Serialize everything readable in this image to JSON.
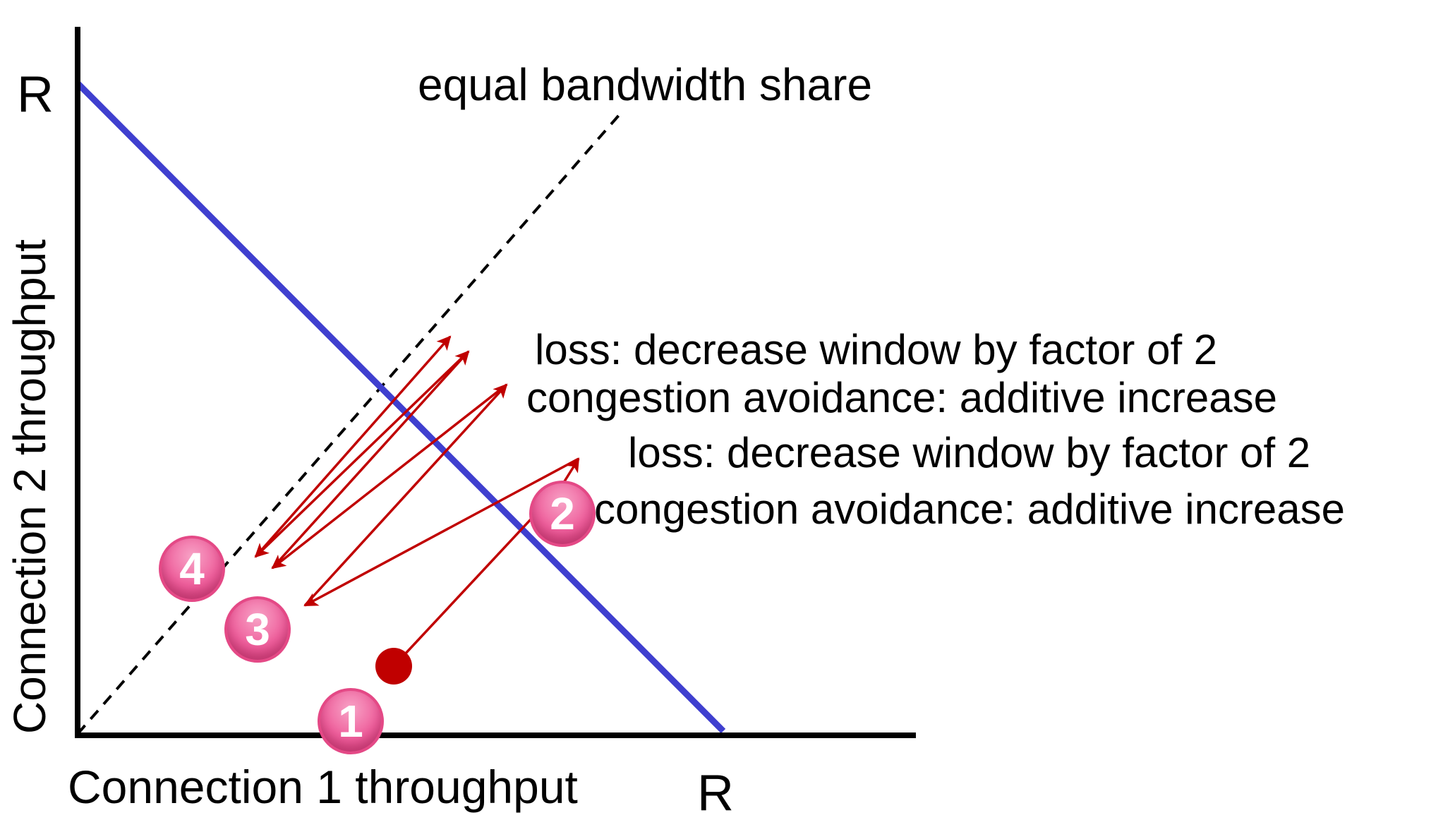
{
  "axes": {
    "x_label": "Connection 1 throughput",
    "y_label": "Connection 2 throughput",
    "x_max_label": "R",
    "y_max_label": "R"
  },
  "lines": {
    "equal_share_label": "equal bandwidth share",
    "capacity_line_color": "#3f3fcf",
    "equal_share_line_color": "#000000"
  },
  "annotations": {
    "loss_1": "loss: decrease window by factor of 2",
    "ca_1": "congestion avoidance: additive increase",
    "loss_2": "loss: decrease window by factor of 2",
    "ca_2": "congestion avoidance: additive increase"
  },
  "markers": [
    {
      "id": "1",
      "label": "1",
      "color": "#e44986"
    },
    {
      "id": "2",
      "label": "2",
      "color": "#e44986"
    },
    {
      "id": "3",
      "label": "3",
      "color": "#e44986"
    },
    {
      "id": "4",
      "label": "4",
      "color": "#e44986"
    }
  ],
  "trajectory_color": "#c00000"
}
